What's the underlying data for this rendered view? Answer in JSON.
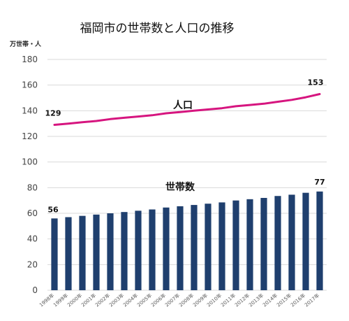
{
  "chart_data": {
    "type": "bar",
    "title": "福岡市の世帯数と人口の推移",
    "unit_label": "万世帯・人",
    "ylim": [
      0,
      180
    ],
    "yticks": [
      0,
      20,
      40,
      60,
      80,
      100,
      120,
      140,
      160,
      180
    ],
    "grid": true,
    "categories": [
      "1998年",
      "1999年",
      "2000年",
      "2001年",
      "2002年",
      "2003年",
      "2004年",
      "2005年",
      "2006年",
      "2007年",
      "2008年",
      "2009年",
      "2010年",
      "2011年",
      "2012年",
      "2013年",
      "2014年",
      "2015年",
      "2016年",
      "2017年"
    ],
    "series": [
      {
        "name": "人口",
        "type": "line",
        "color": "#d6157f",
        "values": [
          129,
          130,
          131,
          132,
          133.5,
          134.5,
          135.5,
          136.5,
          138,
          139,
          140,
          141,
          142,
          143.5,
          144.5,
          145.5,
          147,
          148.5,
          150.5,
          153
        ],
        "label_first": "129",
        "label_last": "153"
      },
      {
        "name": "世帯数",
        "type": "bar",
        "color": "#1f3f6e",
        "values": [
          56,
          57,
          58,
          59,
          60,
          61,
          62,
          63,
          64.5,
          65.5,
          66.5,
          67.5,
          68.5,
          70,
          71,
          72,
          73.5,
          74.5,
          76,
          77
        ],
        "label_first": "56",
        "label_last": "77"
      }
    ]
  }
}
